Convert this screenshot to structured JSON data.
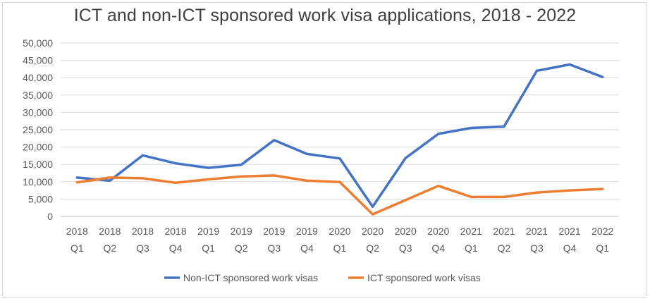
{
  "chart_data": {
    "type": "line",
    "title": "ICT and non-ICT sponsored work visa applications, 2018 - 2022",
    "xlabel": "",
    "ylabel": "",
    "ylim": [
      0,
      50000
    ],
    "yticks": [
      "0",
      "5,000",
      "10,000",
      "15,000",
      "20,000",
      "25,000",
      "30,000",
      "35,000",
      "40,000",
      "45,000",
      "50,000"
    ],
    "grid": true,
    "legend_position": "bottom",
    "categories": [
      {
        "year": "2018",
        "quarter": "Q1"
      },
      {
        "year": "2018",
        "quarter": "Q2"
      },
      {
        "year": "2018",
        "quarter": "Q3"
      },
      {
        "year": "2018",
        "quarter": "Q4"
      },
      {
        "year": "2019",
        "quarter": "Q1"
      },
      {
        "year": "2019",
        "quarter": "Q2"
      },
      {
        "year": "2019",
        "quarter": "Q3"
      },
      {
        "year": "2019",
        "quarter": "Q4"
      },
      {
        "year": "2020",
        "quarter": "Q1"
      },
      {
        "year": "2020",
        "quarter": "Q2"
      },
      {
        "year": "2020",
        "quarter": "Q3"
      },
      {
        "year": "2020",
        "quarter": "Q4"
      },
      {
        "year": "2021",
        "quarter": "Q1"
      },
      {
        "year": "2021",
        "quarter": "Q2"
      },
      {
        "year": "2021",
        "quarter": "Q3"
      },
      {
        "year": "2021",
        "quarter": "Q4"
      },
      {
        "year": "2022",
        "quarter": "Q1"
      }
    ],
    "series": [
      {
        "name": "Non-ICT sponsored work visas",
        "color": "#4472c4",
        "values": [
          11200,
          10300,
          17600,
          15300,
          14000,
          14900,
          22000,
          18000,
          16700,
          2800,
          16800,
          23800,
          25500,
          25900,
          42000,
          43800,
          40200
        ]
      },
      {
        "name": "ICT sponsored work visas",
        "color": "#ed7d31",
        "values": [
          9800,
          11200,
          11000,
          9700,
          10700,
          11500,
          11800,
          10300,
          9900,
          600,
          4700,
          8800,
          5600,
          5600,
          6900,
          7500,
          7900
        ]
      }
    ]
  }
}
